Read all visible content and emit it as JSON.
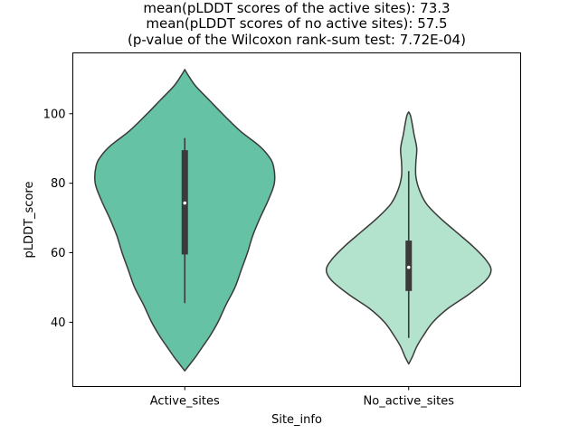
{
  "chart_data": {
    "type": "violin",
    "title_lines": [
      "mean(pLDDT scores of the active sites): 73.3",
      "mean(pLDDT scores of no active sites): 57.5",
      "(p-value of the Wilcoxon rank-sum test: 7.72E-04)"
    ],
    "xlabel": "Site_info",
    "ylabel": "pLDDT_score",
    "categories": [
      "Active_sites",
      "No_active_sites"
    ],
    "ylim": [
      21.5,
      117.5
    ],
    "yticks": [
      40,
      60,
      80,
      100
    ],
    "colors": {
      "Active_sites": "#66c2a5",
      "No_active_sites": "#b3e2cd",
      "outline": "#3a3a3a",
      "box": "#3a3a3a",
      "median": "#ffffff"
    },
    "violins": [
      {
        "name": "Active_sites",
        "median": 74.3,
        "q1": 59.5,
        "q3": 89.5,
        "whisker_low": 45.5,
        "whisker_high": 93.0,
        "density": [
          [
            26,
            0.0
          ],
          [
            28,
            0.06
          ],
          [
            30,
            0.12
          ],
          [
            33,
            0.2
          ],
          [
            36,
            0.28
          ],
          [
            40,
            0.37
          ],
          [
            45,
            0.46
          ],
          [
            50,
            0.56
          ],
          [
            55,
            0.63
          ],
          [
            60,
            0.7
          ],
          [
            65,
            0.76
          ],
          [
            70,
            0.84
          ],
          [
            75,
            0.93
          ],
          [
            80,
            1.0
          ],
          [
            85,
            0.99
          ],
          [
            88,
            0.93
          ],
          [
            91,
            0.82
          ],
          [
            95,
            0.62
          ],
          [
            100,
            0.42
          ],
          [
            104,
            0.27
          ],
          [
            108,
            0.12
          ],
          [
            111,
            0.04
          ],
          [
            112.7,
            0.0
          ]
        ]
      },
      {
        "name": "No_active_sites",
        "median": 55.8,
        "q1": 49.0,
        "q3": 63.5,
        "whisker_low": 35.5,
        "whisker_high": 83.5,
        "density": [
          [
            28,
            0.0
          ],
          [
            30,
            0.04
          ],
          [
            33,
            0.09
          ],
          [
            36,
            0.16
          ],
          [
            40,
            0.27
          ],
          [
            44,
            0.44
          ],
          [
            48,
            0.67
          ],
          [
            52,
            0.86
          ],
          [
            55,
            0.92
          ],
          [
            58,
            0.86
          ],
          [
            62,
            0.71
          ],
          [
            66,
            0.53
          ],
          [
            70,
            0.35
          ],
          [
            74,
            0.2
          ],
          [
            78,
            0.12
          ],
          [
            82,
            0.08
          ],
          [
            86,
            0.08
          ],
          [
            90,
            0.09
          ],
          [
            94,
            0.06
          ],
          [
            97,
            0.04
          ],
          [
            99.5,
            0.02
          ],
          [
            100.5,
            0.0
          ]
        ]
      }
    ]
  }
}
